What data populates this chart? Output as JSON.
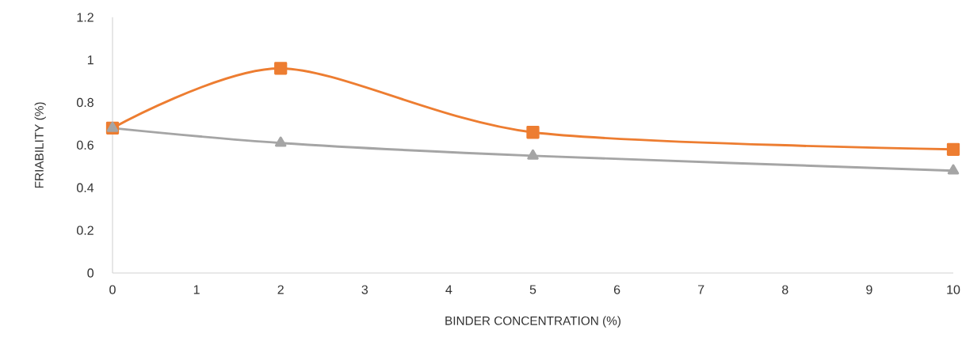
{
  "chart_data": {
    "type": "line",
    "xlabel": "BINDER CONCENTRATION (%)",
    "ylabel": "FRIABILITY (%)",
    "x": [
      0,
      2,
      5,
      10
    ],
    "series": [
      {
        "color": "#ed7d31",
        "values": [
          0.68,
          0.96,
          0.66,
          0.58
        ],
        "marker": "square"
      },
      {
        "color": "#a5a5a5",
        "values": [
          0.68,
          0.61,
          0.55,
          0.48
        ],
        "marker": "triangle"
      }
    ],
    "xlim": [
      0,
      10
    ],
    "xticks": [
      0,
      1,
      2,
      3,
      4,
      5,
      6,
      7,
      8,
      9,
      10
    ],
    "ylim": [
      0,
      1.2
    ],
    "yticks": [
      0,
      0.2,
      0.4,
      0.6,
      0.8,
      1,
      1.2
    ],
    "line_style": "solid"
  }
}
